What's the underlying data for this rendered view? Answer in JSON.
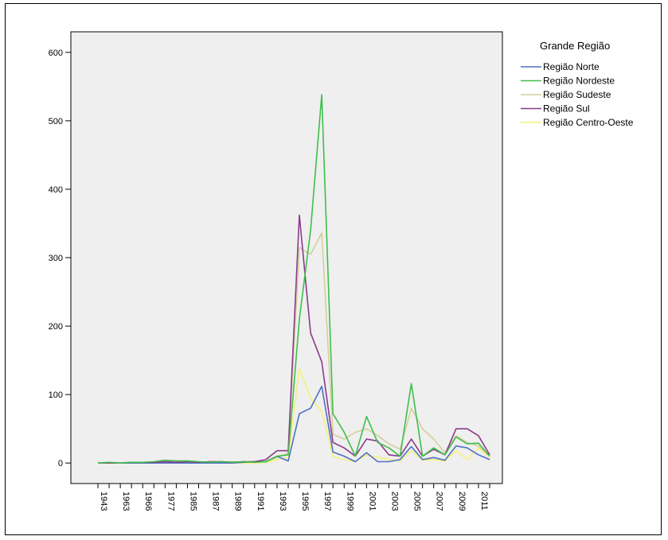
{
  "chart_data": {
    "type": "line",
    "title": "",
    "xlabel": "",
    "ylabel": "",
    "ylim": [
      -30,
      630
    ],
    "yticks": [
      0,
      100,
      200,
      300,
      400,
      500,
      600
    ],
    "x_tick_labels": [
      "1943",
      "1963",
      "1966",
      "1977",
      "1985",
      "1987",
      "1989",
      "1991",
      "1993",
      "1995",
      "1997",
      "1999",
      "2001",
      "2003",
      "2005",
      "2007",
      "2009",
      "2011"
    ],
    "x": [
      "1943",
      "1962",
      "1963",
      "1965",
      "1966",
      "1975",
      "1977",
      "1980",
      "1985",
      "1986",
      "1987",
      "1988",
      "1989",
      "1990",
      "1991",
      "1992",
      "1993",
      "1994",
      "1995",
      "1996",
      "1997",
      "1998",
      "1999",
      "2000",
      "2001",
      "2002",
      "2003",
      "2004",
      "2005",
      "2006",
      "2007",
      "2008",
      "2009",
      "2010",
      "2011",
      "2012"
    ],
    "grid": false,
    "legend": {
      "title": "Grande Região",
      "position": "top-right"
    },
    "series": [
      {
        "name": "Região Norte",
        "color": "#4f6fc7",
        "values": [
          0,
          0,
          0,
          0,
          0,
          0,
          0,
          0,
          0,
          0,
          0,
          0,
          0,
          1,
          2,
          2,
          10,
          3,
          72,
          80,
          112,
          16,
          10,
          2,
          15,
          2,
          2,
          5,
          24,
          5,
          8,
          4,
          25,
          22,
          12,
          5
        ]
      },
      {
        "name": "Região Nordeste",
        "color": "#3fbf4a",
        "values": [
          0,
          1,
          0,
          1,
          1,
          2,
          4,
          3,
          3,
          2,
          1,
          2,
          1,
          2,
          1,
          2,
          10,
          12,
          210,
          340,
          538,
          72,
          45,
          10,
          68,
          30,
          22,
          10,
          116,
          10,
          22,
          12,
          38,
          28,
          29,
          10
        ]
      },
      {
        "name": "Região Sudeste",
        "color": "#d4cf9c",
        "values": [
          0,
          0,
          0,
          0,
          1,
          1,
          2,
          1,
          2,
          1,
          2,
          1,
          2,
          1,
          2,
          2,
          8,
          15,
          315,
          305,
          336,
          42,
          35,
          45,
          50,
          40,
          28,
          20,
          80,
          50,
          35,
          15,
          40,
          30,
          25,
          10
        ]
      },
      {
        "name": "Região Sul",
        "color": "#8c3a8a",
        "values": [
          0,
          0,
          0,
          1,
          1,
          1,
          2,
          1,
          2,
          1,
          2,
          2,
          1,
          2,
          2,
          5,
          18,
          18,
          362,
          190,
          148,
          30,
          22,
          10,
          35,
          32,
          12,
          10,
          35,
          10,
          20,
          12,
          50,
          50,
          40,
          12
        ]
      },
      {
        "name": "Região Centro-Oeste",
        "color": "#f4f27a",
        "values": [
          0,
          0,
          0,
          0,
          0,
          0,
          0,
          0,
          0,
          0,
          0,
          0,
          0,
          0,
          0,
          1,
          5,
          8,
          138,
          95,
          75,
          10,
          5,
          2,
          12,
          8,
          5,
          3,
          18,
          4,
          5,
          3,
          18,
          5,
          22,
          8
        ]
      }
    ]
  }
}
